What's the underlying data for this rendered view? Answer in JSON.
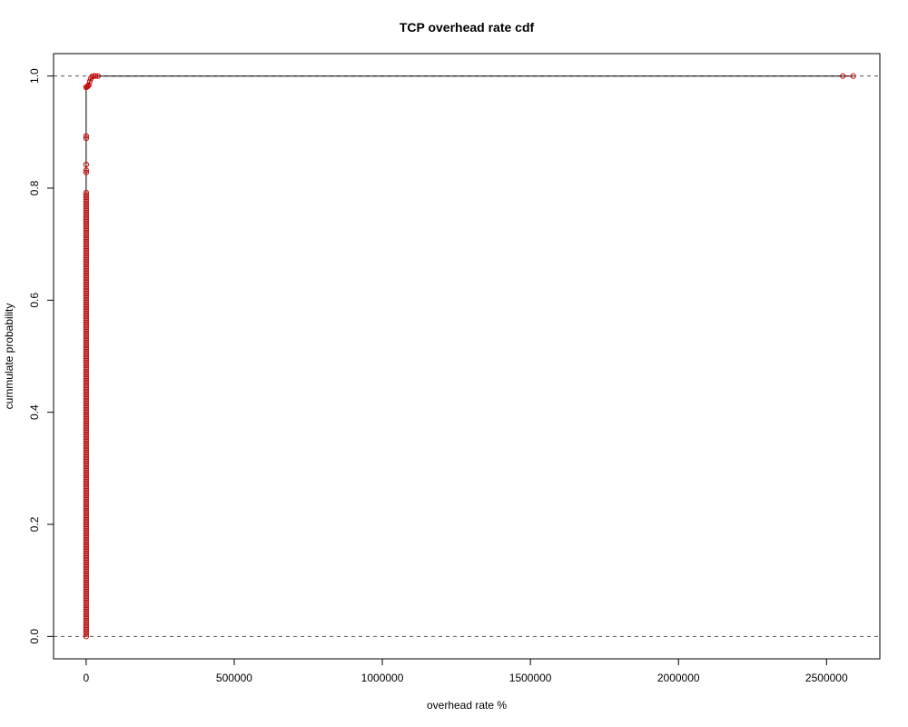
{
  "chart_data": {
    "type": "scatter",
    "title": "TCP overhead rate cdf",
    "xlabel": "overhead rate %",
    "ylabel": "cummulate probability",
    "xlim": [
      -110000,
      2680000
    ],
    "ylim": [
      -0.04,
      1.04
    ],
    "x_ticks": [
      {
        "value": 0,
        "label": "0"
      },
      {
        "value": 500000,
        "label": "500000"
      },
      {
        "value": 1000000,
        "label": "1000000"
      },
      {
        "value": 1500000,
        "label": "1500000"
      },
      {
        "value": 2000000,
        "label": "2000000"
      },
      {
        "value": 2500000,
        "label": "2500000"
      }
    ],
    "y_ticks": [
      {
        "value": 0.0,
        "label": "0.0"
      },
      {
        "value": 0.2,
        "label": "0.2"
      },
      {
        "value": 0.4,
        "label": "0.4"
      },
      {
        "value": 0.6,
        "label": "0.6"
      },
      {
        "value": 0.8,
        "label": "0.8"
      },
      {
        "value": 1.0,
        "label": "1.0"
      }
    ],
    "reference_lines": [
      0,
      1
    ],
    "step_line": [
      [
        0,
        0
      ],
      [
        0,
        0.98
      ],
      [
        5000,
        0.98
      ],
      [
        15000,
        0.995
      ],
      [
        30000,
        1.0
      ],
      [
        2590000,
        1.0
      ]
    ],
    "points_dense": {
      "x": 0,
      "y_from": 0.0,
      "y_to": 0.795,
      "step": 0.004
    },
    "points": [
      [
        0,
        0.828
      ],
      [
        0,
        0.832
      ],
      [
        0,
        0.842
      ],
      [
        0,
        0.889
      ],
      [
        0,
        0.893
      ],
      [
        0,
        0.98
      ],
      [
        3000,
        0.981
      ],
      [
        6000,
        0.982
      ],
      [
        9000,
        0.984
      ],
      [
        12000,
        0.99
      ],
      [
        15000,
        0.995
      ],
      [
        20000,
        0.999
      ],
      [
        26000,
        1.0
      ],
      [
        32000,
        1.0
      ],
      [
        40000,
        1.0
      ],
      [
        2555000,
        1.0
      ],
      [
        2590000,
        1.0
      ]
    ],
    "colors": {
      "points": "#cc0000",
      "step_line": "#000000",
      "reference_lines": "#555555",
      "frame": "#000000"
    },
    "grid": false
  }
}
